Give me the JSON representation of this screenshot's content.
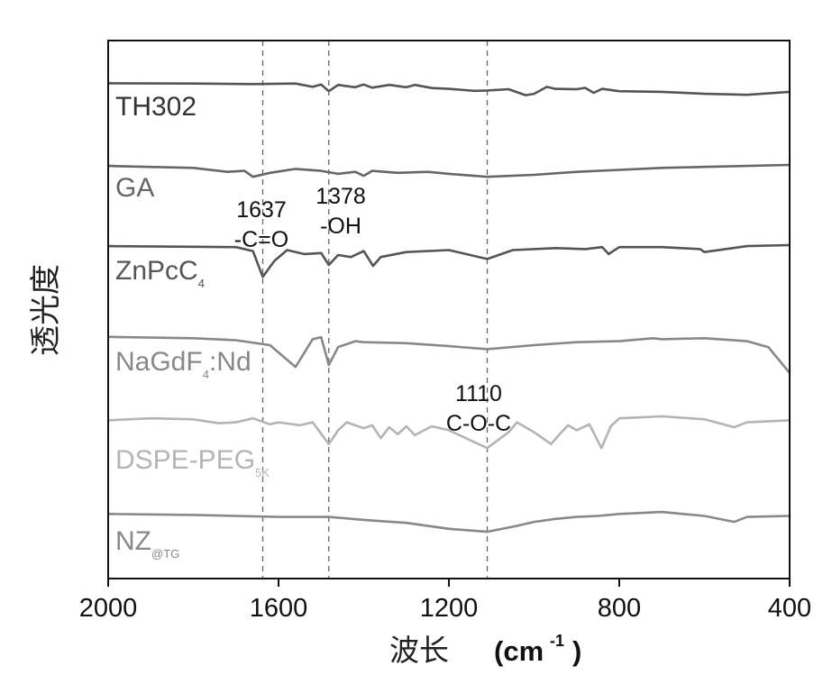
{
  "chart_data": {
    "type": "line",
    "ylabel": "透光度",
    "xlabel": {
      "text": "波长",
      "unit": "(cm",
      "unit_sup": "-1",
      "unit_close": ")"
    },
    "xlim": [
      2000,
      400
    ],
    "x_ticks": [
      "2000",
      "1600",
      "1200",
      "800",
      "400"
    ],
    "x_tick_values": [
      2000,
      1600,
      1200,
      800,
      400
    ],
    "reference_lines": [
      1637,
      1482,
      1110
    ],
    "annotations": [
      {
        "line1": "1637",
        "line2": "-C=O"
      },
      {
        "line1": "1378",
        "line2": "-OH"
      },
      {
        "line1": "1110",
        "line2": "C-O-C"
      }
    ],
    "series": [
      {
        "name": "TH302",
        "sub": "",
        "color": "#555555",
        "points": [
          [
            2000,
            0.02
          ],
          [
            1800,
            0.03
          ],
          [
            1660,
            0.06
          ],
          [
            1560,
            0.03
          ],
          [
            1520,
            0.2
          ],
          [
            1500,
            0.08
          ],
          [
            1482,
            0.42
          ],
          [
            1460,
            0.1
          ],
          [
            1420,
            0.22
          ],
          [
            1400,
            0.08
          ],
          [
            1380,
            0.24
          ],
          [
            1340,
            0.1
          ],
          [
            1300,
            0.22
          ],
          [
            1280,
            0.1
          ],
          [
            1240,
            0.26
          ],
          [
            1200,
            0.3
          ],
          [
            1140,
            0.4
          ],
          [
            1110,
            0.38
          ],
          [
            1060,
            0.32
          ],
          [
            1020,
            0.62
          ],
          [
            1000,
            0.55
          ],
          [
            970,
            0.2
          ],
          [
            950,
            0.3
          ],
          [
            900,
            0.32
          ],
          [
            880,
            0.25
          ],
          [
            860,
            0.5
          ],
          [
            840,
            0.3
          ],
          [
            800,
            0.42
          ],
          [
            700,
            0.45
          ],
          [
            600,
            0.55
          ],
          [
            500,
            0.6
          ],
          [
            400,
            0.45
          ]
        ]
      },
      {
        "name": "GA",
        "sub": "",
        "color": "#666666",
        "points": [
          [
            2000,
            0.05
          ],
          [
            1800,
            0.15
          ],
          [
            1720,
            0.35
          ],
          [
            1680,
            0.3
          ],
          [
            1660,
            0.6
          ],
          [
            1620,
            0.4
          ],
          [
            1560,
            0.2
          ],
          [
            1500,
            0.3
          ],
          [
            1460,
            0.45
          ],
          [
            1420,
            0.35
          ],
          [
            1400,
            0.55
          ],
          [
            1380,
            0.3
          ],
          [
            1320,
            0.4
          ],
          [
            1250,
            0.35
          ],
          [
            1200,
            0.45
          ],
          [
            1110,
            0.6
          ],
          [
            1000,
            0.5
          ],
          [
            900,
            0.35
          ],
          [
            800,
            0.25
          ],
          [
            700,
            0.15
          ],
          [
            600,
            0.1
          ],
          [
            400,
            0.0
          ]
        ]
      },
      {
        "name": "ZnPcC",
        "sub": "4",
        "color": "#555555",
        "points": [
          [
            2000,
            0.05
          ],
          [
            1800,
            0.08
          ],
          [
            1700,
            0.1
          ],
          [
            1660,
            0.3
          ],
          [
            1637,
            1.6
          ],
          [
            1610,
            0.8
          ],
          [
            1580,
            0.25
          ],
          [
            1540,
            0.45
          ],
          [
            1500,
            0.4
          ],
          [
            1482,
            1.0
          ],
          [
            1460,
            0.5
          ],
          [
            1430,
            0.6
          ],
          [
            1400,
            0.3
          ],
          [
            1378,
            1.05
          ],
          [
            1360,
            0.6
          ],
          [
            1300,
            0.35
          ],
          [
            1200,
            0.25
          ],
          [
            1110,
            0.7
          ],
          [
            1050,
            0.25
          ],
          [
            950,
            0.15
          ],
          [
            880,
            0.2
          ],
          [
            840,
            0.1
          ],
          [
            825,
            0.45
          ],
          [
            800,
            0.1
          ],
          [
            700,
            0.1
          ],
          [
            610,
            0.2
          ],
          [
            600,
            0.35
          ],
          [
            500,
            0.05
          ],
          [
            400,
            0.0
          ]
        ]
      },
      {
        "name": "NaGdF",
        "sub": "4",
        "suffix": ":Nd",
        "color": "#888888",
        "points": [
          [
            2000,
            0.08
          ],
          [
            1800,
            0.15
          ],
          [
            1700,
            0.25
          ],
          [
            1620,
            0.5
          ],
          [
            1560,
            1.6
          ],
          [
            1540,
            0.9
          ],
          [
            1520,
            0.2
          ],
          [
            1500,
            0.1
          ],
          [
            1482,
            1.5
          ],
          [
            1460,
            0.6
          ],
          [
            1420,
            0.3
          ],
          [
            1400,
            0.35
          ],
          [
            1300,
            0.4
          ],
          [
            1200,
            0.55
          ],
          [
            1110,
            0.7
          ],
          [
            1000,
            0.5
          ],
          [
            900,
            0.35
          ],
          [
            800,
            0.3
          ],
          [
            720,
            0.15
          ],
          [
            700,
            0.2
          ],
          [
            600,
            0.15
          ],
          [
            500,
            0.3
          ],
          [
            450,
            0.6
          ],
          [
            400,
            1.9
          ]
        ]
      },
      {
        "name": "DSPE-PEG",
        "sub": "5K",
        "color": "#b4b4b4",
        "points": [
          [
            2000,
            0.2
          ],
          [
            1900,
            0.1
          ],
          [
            1800,
            0.15
          ],
          [
            1740,
            0.35
          ],
          [
            1700,
            0.3
          ],
          [
            1660,
            0.1
          ],
          [
            1620,
            0.4
          ],
          [
            1600,
            0.3
          ],
          [
            1550,
            0.45
          ],
          [
            1520,
            0.3
          ],
          [
            1482,
            1.4
          ],
          [
            1460,
            0.7
          ],
          [
            1440,
            0.3
          ],
          [
            1400,
            0.6
          ],
          [
            1380,
            0.45
          ],
          [
            1360,
            1.1
          ],
          [
            1340,
            0.55
          ],
          [
            1320,
            0.9
          ],
          [
            1300,
            0.5
          ],
          [
            1280,
            0.95
          ],
          [
            1240,
            0.5
          ],
          [
            1200,
            0.7
          ],
          [
            1150,
            1.2
          ],
          [
            1110,
            1.6
          ],
          [
            1060,
            0.8
          ],
          [
            1040,
            0.3
          ],
          [
            1000,
            0.8
          ],
          [
            960,
            1.4
          ],
          [
            940,
            0.9
          ],
          [
            920,
            0.45
          ],
          [
            900,
            0.7
          ],
          [
            870,
            0.4
          ],
          [
            842,
            1.6
          ],
          [
            820,
            0.5
          ],
          [
            800,
            0.1
          ],
          [
            700,
            0.0
          ],
          [
            600,
            0.15
          ],
          [
            530,
            0.55
          ],
          [
            500,
            0.3
          ],
          [
            400,
            0.2
          ]
        ]
      },
      {
        "name": "NZ",
        "sub": "@TG",
        "color": "#888888",
        "points": [
          [
            2000,
            0.15
          ],
          [
            1800,
            0.2
          ],
          [
            1700,
            0.25
          ],
          [
            1600,
            0.3
          ],
          [
            1482,
            0.3
          ],
          [
            1400,
            0.45
          ],
          [
            1300,
            0.6
          ],
          [
            1200,
            0.9
          ],
          [
            1110,
            1.05
          ],
          [
            1040,
            0.75
          ],
          [
            1000,
            0.55
          ],
          [
            950,
            0.4
          ],
          [
            900,
            0.3
          ],
          [
            850,
            0.25
          ],
          [
            800,
            0.15
          ],
          [
            700,
            0.05
          ],
          [
            600,
            0.25
          ],
          [
            530,
            0.55
          ],
          [
            500,
            0.3
          ],
          [
            400,
            0.25
          ]
        ]
      }
    ]
  }
}
